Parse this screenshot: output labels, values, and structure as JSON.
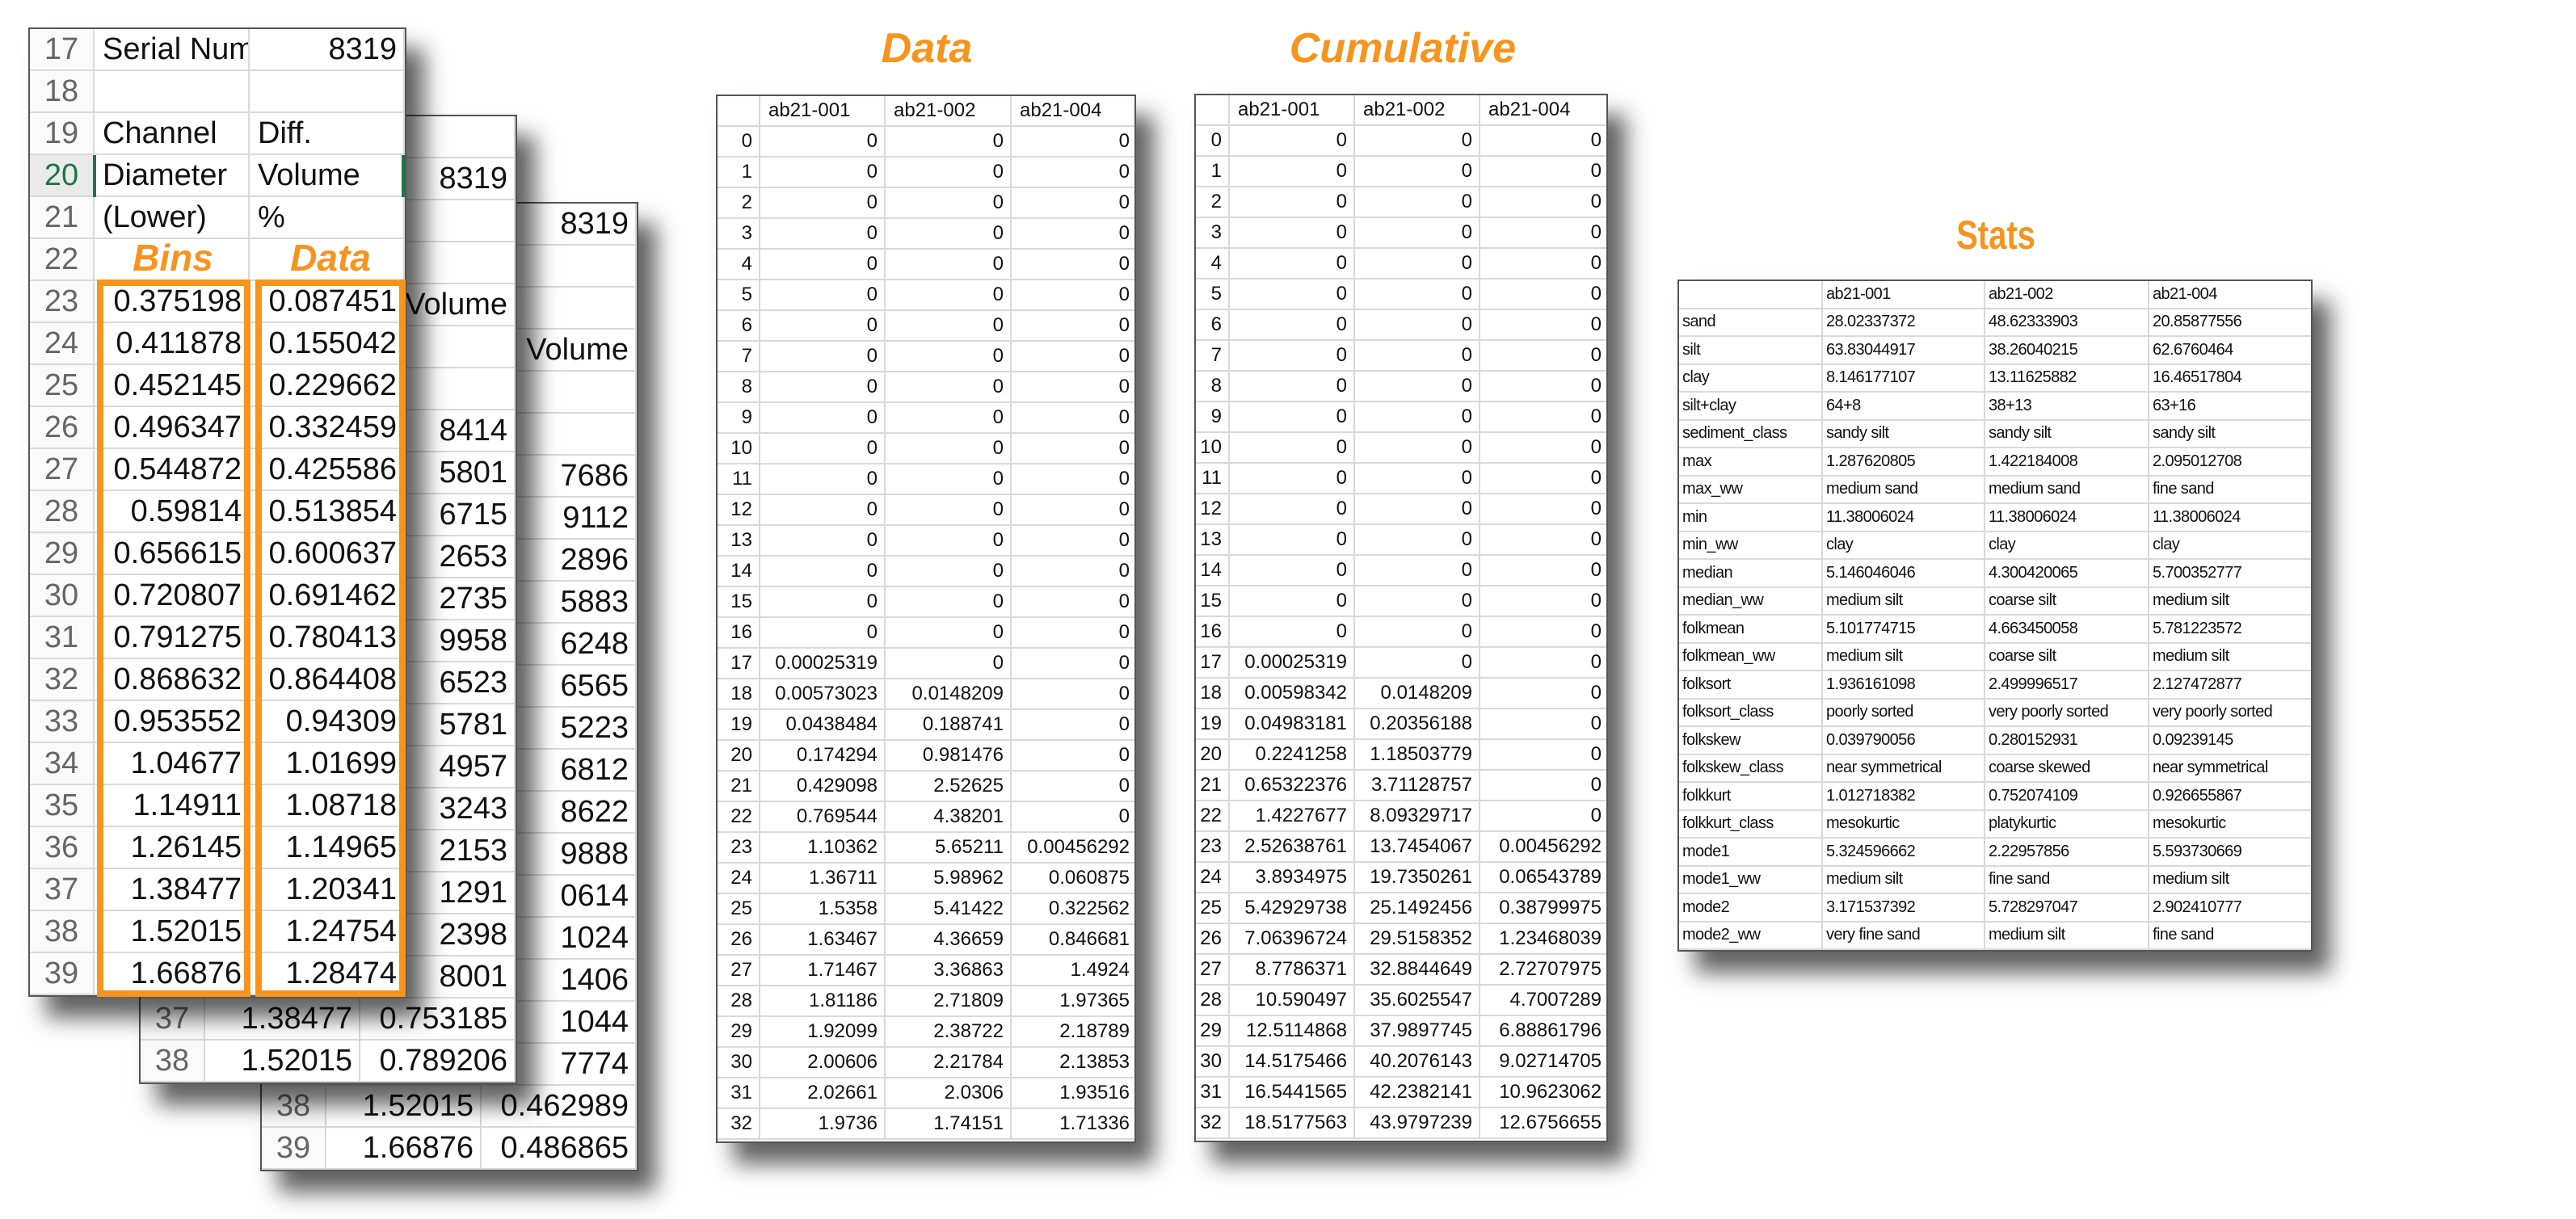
{
  "colors": {
    "accent": "#F7941D",
    "selected_row": "#217346"
  },
  "back_sheet_3": {
    "rows": [
      [
        "",
        "",
        "8319"
      ],
      [
        "",
        "",
        ""
      ],
      [
        "",
        "",
        ""
      ],
      [
        "",
        "",
        "Volume"
      ],
      [
        "",
        "",
        ""
      ],
      [
        "",
        "",
        ""
      ],
      [
        "",
        "",
        "7686"
      ],
      [
        "",
        "",
        "9112"
      ],
      [
        "",
        "",
        "2896"
      ],
      [
        "",
        "",
        "5883"
      ],
      [
        "",
        "",
        "6248"
      ],
      [
        "",
        "",
        "6565"
      ],
      [
        "",
        "",
        "5223"
      ],
      [
        "",
        "",
        "6812"
      ],
      [
        "",
        "",
        "8622"
      ],
      [
        "",
        "",
        "9888"
      ],
      [
        "",
        "",
        "0614"
      ],
      [
        "",
        "",
        "1024"
      ],
      [
        "",
        "",
        "1406"
      ],
      [
        "",
        "",
        "1044"
      ],
      [
        "",
        "",
        "7774"
      ],
      [
        "38",
        "1.52015",
        "0.462989"
      ],
      [
        "39",
        "1.66876",
        "0.486865"
      ]
    ]
  },
  "back_sheet_2": {
    "rows": [
      [
        "",
        "",
        ""
      ],
      [
        "",
        "",
        "8319"
      ],
      [
        "",
        "",
        ""
      ],
      [
        "",
        "",
        ""
      ],
      [
        "",
        "",
        "Volume"
      ],
      [
        "",
        "",
        ""
      ],
      [
        "",
        "",
        ""
      ],
      [
        "",
        "",
        "8414"
      ],
      [
        "",
        "",
        "5801"
      ],
      [
        "",
        "",
        "6715"
      ],
      [
        "",
        "",
        "2653"
      ],
      [
        "",
        "",
        "2735"
      ],
      [
        "",
        "",
        "9958"
      ],
      [
        "",
        "",
        "6523"
      ],
      [
        "",
        "",
        "5781"
      ],
      [
        "",
        "",
        "4957"
      ],
      [
        "",
        "",
        "3243"
      ],
      [
        "",
        "",
        "2153"
      ],
      [
        "",
        "",
        "1291"
      ],
      [
        "",
        "",
        "2398"
      ],
      [
        "",
        "",
        "8001"
      ],
      [
        "37",
        "1.38477",
        "0.753185"
      ],
      [
        "38",
        "1.52015",
        "0.789206"
      ]
    ]
  },
  "front_sheet": {
    "selected_row": "20",
    "bins_label": "Bins",
    "data_label": "Data",
    "rows": [
      [
        "17",
        "Serial Num",
        "8319"
      ],
      [
        "18",
        "",
        ""
      ],
      [
        "19",
        "Channel",
        "Diff."
      ],
      [
        "20",
        "Diameter",
        "Volume"
      ],
      [
        "21",
        "(Lower)",
        "%"
      ],
      [
        "22",
        "",
        ""
      ],
      [
        "23",
        "0.375198",
        "0.087451"
      ],
      [
        "24",
        "0.411878",
        "0.155042"
      ],
      [
        "25",
        "0.452145",
        "0.229662"
      ],
      [
        "26",
        "0.496347",
        "0.332459"
      ],
      [
        "27",
        "0.544872",
        "0.425586"
      ],
      [
        "28",
        "0.59814",
        "0.513854"
      ],
      [
        "29",
        "0.656615",
        "0.600637"
      ],
      [
        "30",
        "0.720807",
        "0.691462"
      ],
      [
        "31",
        "0.791275",
        "0.780413"
      ],
      [
        "32",
        "0.868632",
        "0.864408"
      ],
      [
        "33",
        "0.953552",
        "0.94309"
      ],
      [
        "34",
        "1.04677",
        "1.01699"
      ],
      [
        "35",
        "1.14911",
        "1.08718"
      ],
      [
        "36",
        "1.26145",
        "1.14965"
      ],
      [
        "37",
        "1.38477",
        "1.20341"
      ],
      [
        "38",
        "1.52015",
        "1.24754"
      ],
      [
        "39",
        "1.66876",
        "1.28474"
      ]
    ]
  },
  "data_table": {
    "title": "Data",
    "headers": [
      "",
      "ab21-001",
      "ab21-002",
      "ab21-004"
    ],
    "rows": [
      [
        "0",
        "0",
        "0",
        "0"
      ],
      [
        "1",
        "0",
        "0",
        "0"
      ],
      [
        "2",
        "0",
        "0",
        "0"
      ],
      [
        "3",
        "0",
        "0",
        "0"
      ],
      [
        "4",
        "0",
        "0",
        "0"
      ],
      [
        "5",
        "0",
        "0",
        "0"
      ],
      [
        "6",
        "0",
        "0",
        "0"
      ],
      [
        "7",
        "0",
        "0",
        "0"
      ],
      [
        "8",
        "0",
        "0",
        "0"
      ],
      [
        "9",
        "0",
        "0",
        "0"
      ],
      [
        "10",
        "0",
        "0",
        "0"
      ],
      [
        "11",
        "0",
        "0",
        "0"
      ],
      [
        "12",
        "0",
        "0",
        "0"
      ],
      [
        "13",
        "0",
        "0",
        "0"
      ],
      [
        "14",
        "0",
        "0",
        "0"
      ],
      [
        "15",
        "0",
        "0",
        "0"
      ],
      [
        "16",
        "0",
        "0",
        "0"
      ],
      [
        "17",
        "0.00025319",
        "0",
        "0"
      ],
      [
        "18",
        "0.00573023",
        "0.0148209",
        "0"
      ],
      [
        "19",
        "0.0438484",
        "0.188741",
        "0"
      ],
      [
        "20",
        "0.174294",
        "0.981476",
        "0"
      ],
      [
        "21",
        "0.429098",
        "2.52625",
        "0"
      ],
      [
        "22",
        "0.769544",
        "4.38201",
        "0"
      ],
      [
        "23",
        "1.10362",
        "5.65211",
        "0.00456292"
      ],
      [
        "24",
        "1.36711",
        "5.98962",
        "0.060875"
      ],
      [
        "25",
        "1.5358",
        "5.41422",
        "0.322562"
      ],
      [
        "26",
        "1.63467",
        "4.36659",
        "0.846681"
      ],
      [
        "27",
        "1.71467",
        "3.36863",
        "1.4924"
      ],
      [
        "28",
        "1.81186",
        "2.71809",
        "1.97365"
      ],
      [
        "29",
        "1.92099",
        "2.38722",
        "2.18789"
      ],
      [
        "30",
        "2.00606",
        "2.21784",
        "2.13853"
      ],
      [
        "31",
        "2.02661",
        "2.0306",
        "1.93516"
      ],
      [
        "32",
        "1.9736",
        "1.74151",
        "1.71336"
      ]
    ]
  },
  "cumulative_table": {
    "title": "Cumulative",
    "headers": [
      "",
      "ab21-001",
      "ab21-002",
      "ab21-004"
    ],
    "rows": [
      [
        "0",
        "0",
        "0",
        "0"
      ],
      [
        "1",
        "0",
        "0",
        "0"
      ],
      [
        "2",
        "0",
        "0",
        "0"
      ],
      [
        "3",
        "0",
        "0",
        "0"
      ],
      [
        "4",
        "0",
        "0",
        "0"
      ],
      [
        "5",
        "0",
        "0",
        "0"
      ],
      [
        "6",
        "0",
        "0",
        "0"
      ],
      [
        "7",
        "0",
        "0",
        "0"
      ],
      [
        "8",
        "0",
        "0",
        "0"
      ],
      [
        "9",
        "0",
        "0",
        "0"
      ],
      [
        "10",
        "0",
        "0",
        "0"
      ],
      [
        "11",
        "0",
        "0",
        "0"
      ],
      [
        "12",
        "0",
        "0",
        "0"
      ],
      [
        "13",
        "0",
        "0",
        "0"
      ],
      [
        "14",
        "0",
        "0",
        "0"
      ],
      [
        "15",
        "0",
        "0",
        "0"
      ],
      [
        "16",
        "0",
        "0",
        "0"
      ],
      [
        "17",
        "0.00025319",
        "0",
        "0"
      ],
      [
        "18",
        "0.00598342",
        "0.0148209",
        "0"
      ],
      [
        "19",
        "0.04983181",
        "0.20356188",
        "0"
      ],
      [
        "20",
        "0.2241258",
        "1.18503779",
        "0"
      ],
      [
        "21",
        "0.65322376",
        "3.71128757",
        "0"
      ],
      [
        "22",
        "1.4227677",
        "8.09329717",
        "0"
      ],
      [
        "23",
        "2.52638761",
        "13.7454067",
        "0.00456292"
      ],
      [
        "24",
        "3.8934975",
        "19.7350261",
        "0.06543789"
      ],
      [
        "25",
        "5.42929738",
        "25.1492456",
        "0.38799975"
      ],
      [
        "26",
        "7.06396724",
        "29.5158352",
        "1.23468039"
      ],
      [
        "27",
        "8.7786371",
        "32.8844649",
        "2.72707975"
      ],
      [
        "28",
        "10.590497",
        "35.6025547",
        "4.7007289"
      ],
      [
        "29",
        "12.5114868",
        "37.9897745",
        "6.88861796"
      ],
      [
        "30",
        "14.5175466",
        "40.2076143",
        "9.02714705"
      ],
      [
        "31",
        "16.5441565",
        "42.2382141",
        "10.9623062"
      ],
      [
        "32",
        "18.5177563",
        "43.9797239",
        "12.6756655"
      ]
    ]
  },
  "stats_table": {
    "title": "Stats",
    "headers": [
      "",
      "ab21-001",
      "ab21-002",
      "ab21-004"
    ],
    "rows": [
      [
        "sand",
        "28.02337372",
        "48.62333903",
        "20.85877556"
      ],
      [
        "silt",
        "63.83044917",
        "38.26040215",
        "62.6760464"
      ],
      [
        "clay",
        "8.146177107",
        "13.11625882",
        "16.46517804"
      ],
      [
        "silt+clay",
        "64+8",
        "38+13",
        "63+16"
      ],
      [
        "sediment_class",
        "sandy silt",
        "sandy silt",
        "sandy silt"
      ],
      [
        "max",
        "1.287620805",
        "1.422184008",
        "2.095012708"
      ],
      [
        "max_ww",
        "medium sand",
        "medium sand",
        "fine sand"
      ],
      [
        "min",
        "11.38006024",
        "11.38006024",
        "11.38006024"
      ],
      [
        "min_ww",
        "clay",
        "clay",
        "clay"
      ],
      [
        "median",
        "5.146046046",
        "4.300420065",
        "5.700352777"
      ],
      [
        "median_ww",
        "medium silt",
        "coarse silt",
        "medium silt"
      ],
      [
        "folkmean",
        "5.101774715",
        "4.663450058",
        "5.781223572"
      ],
      [
        "folkmean_ww",
        "medium silt",
        "coarse silt",
        "medium silt"
      ],
      [
        "folksort",
        "1.936161098",
        "2.499996517",
        "2.127472877"
      ],
      [
        "folksort_class",
        "poorly sorted",
        "very poorly sorted",
        "very poorly sorted"
      ],
      [
        "folkskew",
        "0.039790056",
        "0.280152931",
        "0.09239145"
      ],
      [
        "folkskew_class",
        "near symmetrical",
        "coarse skewed",
        "near symmetrical"
      ],
      [
        "folkkurt",
        "1.012718382",
        "0.752074109",
        "0.926655867"
      ],
      [
        "folkkurt_class",
        "mesokurtic",
        "platykurtic",
        "mesokurtic"
      ],
      [
        "mode1",
        "5.324596662",
        "2.22957856",
        "5.593730669"
      ],
      [
        "mode1_ww",
        "medium silt",
        "fine sand",
        "medium silt"
      ],
      [
        "mode2",
        "3.171537392",
        "5.728297047",
        "2.902410777"
      ],
      [
        "mode2_ww",
        "very fine sand",
        "medium silt",
        "fine sand"
      ]
    ]
  }
}
